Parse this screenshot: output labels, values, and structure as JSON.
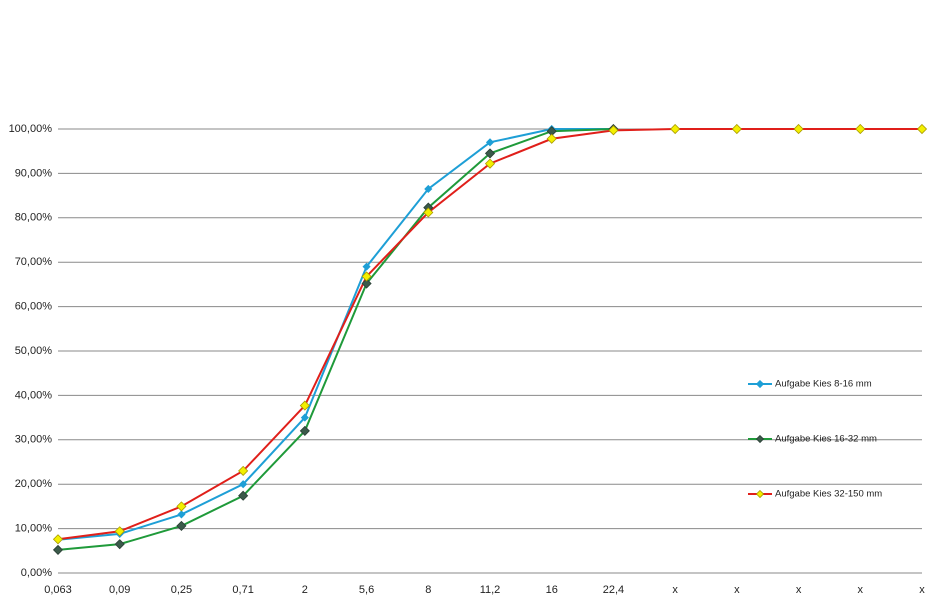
{
  "chart_data": {
    "type": "line",
    "categories": [
      "0,063",
      "0,09",
      "0,25",
      "0,71",
      "2",
      "5,6",
      "8",
      "11,2",
      "16",
      "22,4",
      "x",
      "x",
      "x",
      "x",
      "x"
    ],
    "series": [
      {
        "name": "Aufgabe Kies 8-16 mm",
        "color": "#1e9fd6",
        "marker_color": "#1e9fd6",
        "marker_stroke": "#1e9fd6",
        "values": [
          7.5,
          8.8,
          13.2,
          20,
          35,
          69,
          86.5,
          97,
          100,
          100,
          null,
          null,
          null,
          null,
          null
        ]
      },
      {
        "name": "Aufgabe Kies 16-32 mm",
        "color": "#1f9a3a",
        "marker_color": "#3b5a4a",
        "marker_stroke": "#2a3f35",
        "values": [
          5.2,
          6.5,
          10.6,
          17.4,
          32,
          65.2,
          82.3,
          94.5,
          99.5,
          100,
          null,
          null,
          null,
          null,
          null
        ]
      },
      {
        "name": "Aufgabe Kies 32-150 mm",
        "color": "#e01f1a",
        "marker_color": "#f3ef00",
        "marker_stroke": "#a89a00",
        "values": [
          7.6,
          9.4,
          15,
          23,
          37.7,
          66.8,
          81.2,
          92.2,
          97.8,
          99.7,
          100,
          100,
          100,
          100,
          100
        ]
      }
    ],
    "ylim": [
      0,
      100
    ],
    "yticks": [
      {
        "value": 0,
        "label": "0,00%"
      },
      {
        "value": 10,
        "label": "10,00%"
      },
      {
        "value": 20,
        "label": "20,00%"
      },
      {
        "value": 30,
        "label": "30,00%"
      },
      {
        "value": 40,
        "label": "40,00%"
      },
      {
        "value": 50,
        "label": "50,00%"
      },
      {
        "value": 60,
        "label": "60,00%"
      },
      {
        "value": 70,
        "label": "70,00%"
      },
      {
        "value": 80,
        "label": "80,00%"
      },
      {
        "value": 90,
        "label": "90,00%"
      },
      {
        "value": 100,
        "label": "100,00%"
      }
    ],
    "grid": true,
    "legend": "right"
  }
}
